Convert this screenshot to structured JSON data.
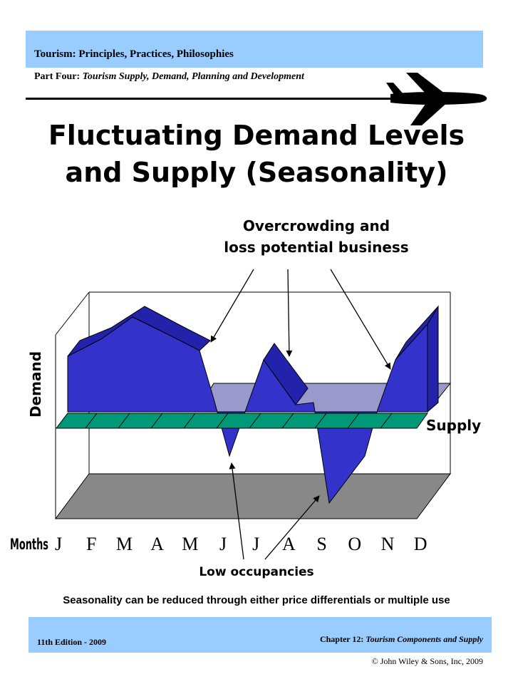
{
  "header": {
    "book_title": "Tourism: Principles, Practices, Philosophies",
    "part_label": "Part Four:",
    "part_title": "Tourism Supply, Demand, Planning and Development"
  },
  "title": {
    "line1": "Fluctuating Demand Levels",
    "line2": "and Supply (Seasonality)"
  },
  "diagram": {
    "annotation_top_line1": "Overcrowding and",
    "annotation_top_line2": "loss potential business",
    "annotation_bottom": "Low occupancies",
    "y_axis_label": "Demand",
    "supply_label": "Supply",
    "months_label": "Months",
    "months": [
      "J",
      "F",
      "M",
      "A",
      "M",
      "J",
      "J",
      "A",
      "S",
      "O",
      "N",
      "D"
    ],
    "colors": {
      "demand": "#3333cc",
      "demand_top": "#2222aa",
      "supply": "#009977",
      "floor": "#888888",
      "back_plane": "#9999cc"
    }
  },
  "caption": "Seasonality can be reduced through either price differentials or multiple use",
  "footer": {
    "edition": "11th Edition - 2009",
    "chapter_label": "Chapter 12:",
    "chapter_title": "Tourism Components and Supply",
    "copyright": "© John Wiley & Sons, Inc, 2009"
  }
}
